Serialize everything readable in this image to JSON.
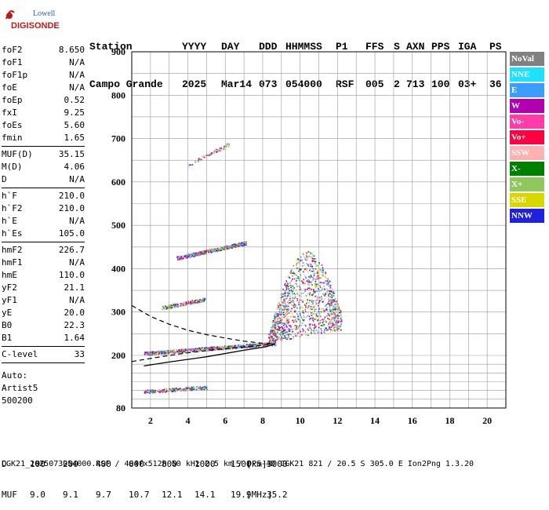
{
  "logo": {
    "line1": "Lowell",
    "line2": "DIGISONDE"
  },
  "header": {
    "labels": [
      "Station",
      "YYYY",
      "DAY",
      "DDD",
      "HHMMSS",
      "P1",
      "FFS",
      "S",
      "AXN",
      "PPS",
      "IGA",
      "PS"
    ],
    "values": [
      "Campo Grande",
      "2025",
      "Mar14",
      "073",
      "054000",
      "RSF",
      "005",
      "2",
      "713",
      "100",
      "03+",
      "36"
    ]
  },
  "params": {
    "group1": [
      {
        "k": "foF2",
        "v": "8.650"
      },
      {
        "k": "foF1",
        "v": "N/A"
      },
      {
        "k": "foF1p",
        "v": "N/A"
      },
      {
        "k": "foE",
        "v": "N/A"
      },
      {
        "k": "foEp",
        "v": "0.52"
      },
      {
        "k": "fxI",
        "v": "9.25"
      },
      {
        "k": "foEs",
        "v": "5.60"
      },
      {
        "k": "fmin",
        "v": "1.65"
      }
    ],
    "group2": [
      {
        "k": "MUF(D)",
        "v": "35.15"
      },
      {
        "k": "M(D)",
        "v": "4.06"
      },
      {
        "k": "D",
        "v": "N/A"
      }
    ],
    "group3": [
      {
        "k": "h`F",
        "v": "210.0"
      },
      {
        "k": "h`F2",
        "v": "210.0"
      },
      {
        "k": "h`E",
        "v": "N/A"
      },
      {
        "k": "h`Es",
        "v": "105.0"
      }
    ],
    "group4": [
      {
        "k": "hmF2",
        "v": "226.7"
      },
      {
        "k": "hmF1",
        "v": "N/A"
      },
      {
        "k": "hmE",
        "v": "110.0"
      },
      {
        "k": "yF2",
        "v": "21.1"
      },
      {
        "k": "yF1",
        "v": "N/A"
      },
      {
        "k": "yE",
        "v": "20.0"
      },
      {
        "k": "B0",
        "v": "22.3"
      },
      {
        "k": "B1",
        "v": "1.64"
      }
    ],
    "group5": [
      {
        "k": "C-level",
        "v": "33"
      }
    ],
    "auto": [
      "Auto:",
      "Artist5",
      "500200"
    ]
  },
  "legend": [
    {
      "label": "NoVal",
      "color": "#808080"
    },
    {
      "label": "NNE",
      "color": "#1ee0ff"
    },
    {
      "label": "E",
      "color": "#3c9cff"
    },
    {
      "label": "W",
      "color": "#b000b0"
    },
    {
      "label": "Vo-",
      "color": "#ff3ca8"
    },
    {
      "label": "Vo+",
      "color": "#ff0040"
    },
    {
      "label": "SSW",
      "color": "#ffb0b0"
    },
    {
      "label": "X-",
      "color": "#008000"
    },
    {
      "label": "X+",
      "color": "#90c860"
    },
    {
      "label": "SSE",
      "color": "#d8d800"
    },
    {
      "label": "NNW",
      "color": "#2020e0"
    }
  ],
  "chart_data": {
    "type": "scatter",
    "title": "",
    "xlabel": "",
    "ylabel": "",
    "xlim": [
      1,
      21
    ],
    "ylim": [
      80,
      900
    ],
    "x_ticks": [
      2,
      4,
      6,
      8,
      10,
      12,
      14,
      16,
      18,
      20
    ],
    "y_ticks": [
      80,
      200,
      300,
      400,
      500,
      600,
      700,
      800,
      900
    ],
    "clusters": [
      {
        "name": "Es",
        "x": [
          1.65,
          5.0
        ],
        "y": [
          118,
          128
        ],
        "density": 260
      },
      {
        "name": "F-trace",
        "x": [
          1.65,
          8.7
        ],
        "y": [
          205,
          228
        ],
        "density": 700
      },
      {
        "name": "spread-F",
        "x": [
          8.3,
          12.2
        ],
        "y": [
          230,
          420
        ],
        "density": 1300
      },
      {
        "name": "2F-trace",
        "x": [
          2.6,
          4.9
        ],
        "y": [
          310,
          330
        ],
        "density": 220
      },
      {
        "name": "2F-upper",
        "x": [
          3.4,
          7.1
        ],
        "y": [
          425,
          460
        ],
        "density": 500
      },
      {
        "name": "3F-trace",
        "x": [
          4.0,
          6.3
        ],
        "y": [
          640,
          690
        ],
        "density": 80
      }
    ],
    "profile_solid": [
      [
        1.65,
        176
      ],
      [
        3,
        185
      ],
      [
        5,
        197
      ],
      [
        7,
        212
      ],
      [
        8.2,
        220
      ],
      [
        8.65,
        226.7
      ]
    ],
    "profile_dashed_upper": [
      [
        1.0,
        315
      ],
      [
        2,
        290
      ],
      [
        3,
        272
      ],
      [
        4,
        258
      ],
      [
        5,
        248
      ],
      [
        6,
        240
      ],
      [
        7,
        233
      ],
      [
        8,
        228
      ],
      [
        8.65,
        226.7
      ]
    ],
    "profile_dashed_lower": [
      [
        1.0,
        186
      ],
      [
        2,
        193
      ],
      [
        3,
        200
      ],
      [
        4,
        206
      ],
      [
        5,
        211
      ],
      [
        6,
        216
      ],
      [
        7,
        219
      ],
      [
        8.65,
        226.7
      ]
    ]
  },
  "footer": {
    "d_label": "D",
    "d_values": [
      "100",
      "200",
      "400",
      "600",
      "800",
      "1000",
      "1500",
      "3000"
    ],
    "d_unit": "[km]",
    "muf_label": "MUF",
    "muf_values": [
      "9.0",
      "9.1",
      "9.7",
      "10.7",
      "12.1",
      "14.1",
      "19.9",
      "35.2"
    ],
    "muf_unit": "[MHz]",
    "info": "CGK21_2025073054000.RSF / 404fx512h 50 kHz 2.5 km / DPS-4D CGK21 821 / 20.5 S 305.0 E Ion2Png 1.3.20"
  }
}
